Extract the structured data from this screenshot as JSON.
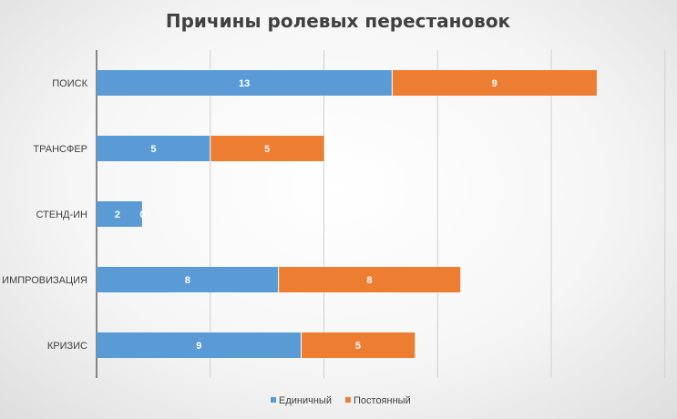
{
  "chart_data": {
    "type": "bar",
    "orientation": "horizontal",
    "stacked": true,
    "title": "Причины ролевых перестановок",
    "categories": [
      "ПОИСК",
      "ТРАНСФЕР",
      "СТЕНД-ИН",
      "ИМПРОВИЗАЦИЯ",
      "КРИЗИС"
    ],
    "series": [
      {
        "name": "Единичный",
        "values": [
          13,
          5,
          2,
          8,
          9
        ],
        "color": "#5b9bd5"
      },
      {
        "name": "Постоянный",
        "values": [
          9,
          5,
          0,
          8,
          5
        ],
        "color": "#ed7d31"
      }
    ],
    "xlim": [
      0,
      25
    ],
    "grid": "vertical",
    "legend": "bottom"
  }
}
